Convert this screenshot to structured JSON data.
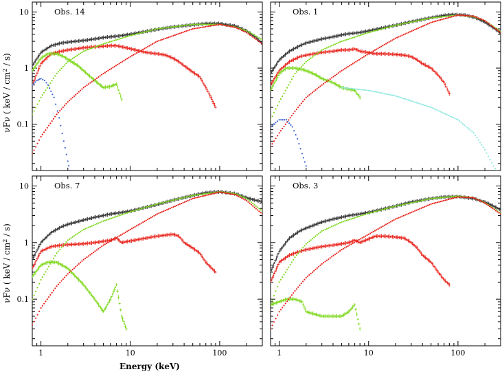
{
  "figure": {
    "xlabel": "Energy (keV)",
    "ylabel": "νFν ( keV / cm² / s)",
    "ylabel_main": "νFν ( keV / cm",
    "ylabel_sup": "2",
    "ylabel_tail": " / s)",
    "x_tick_labels": [
      "1",
      "10",
      "100"
    ],
    "y_tick_labels": [
      "0.1",
      "1",
      "10"
    ]
  },
  "colors": {
    "data_total": "#333333",
    "reflection": "#e8231c",
    "comptonization": "#7fd81e",
    "disk": "#3a63d6",
    "extra": "#8fe9df",
    "frame": "#000000"
  },
  "chart_data": [
    {
      "type": "line",
      "title": "Obs. 14",
      "xscale": "log",
      "yscale": "log",
      "xlim": [
        0.8,
        300
      ],
      "ylim": [
        0.015,
        15
      ],
      "series": [
        {
          "name": "total",
          "style": "data",
          "x": [
            0.8,
            1.0,
            1.3,
            1.7,
            2,
            3,
            4,
            5,
            6,
            7,
            8,
            10,
            20,
            30,
            50,
            70,
            100,
            150,
            200,
            250,
            300
          ],
          "y": [
            1.1,
            1.9,
            2.5,
            2.8,
            2.9,
            3.1,
            3.3,
            3.5,
            3.6,
            3.7,
            3.8,
            4.0,
            4.9,
            5.4,
            5.9,
            6.2,
            6.2,
            5.6,
            4.6,
            3.6,
            2.7
          ]
        },
        {
          "name": "reflection",
          "style": "data",
          "x": [
            0.8,
            1.0,
            1.3,
            1.7,
            2,
            3,
            4,
            5,
            6,
            7,
            8,
            15,
            20,
            25,
            30,
            35,
            40,
            50,
            60,
            70,
            80,
            90
          ],
          "y": [
            0.5,
            1.2,
            1.8,
            2.0,
            2.1,
            2.3,
            2.4,
            2.45,
            2.5,
            2.5,
            2.4,
            1.9,
            1.8,
            1.7,
            1.5,
            1.3,
            1.1,
            0.85,
            0.7,
            0.45,
            0.3,
            0.2
          ]
        },
        {
          "name": "comptonization",
          "style": "data",
          "x": [
            0.8,
            1.0,
            1.2,
            1.5,
            1.8,
            2.2,
            2.6,
            3,
            4,
            5,
            6,
            7,
            8
          ],
          "y": [
            0.9,
            1.5,
            1.8,
            1.8,
            1.6,
            1.3,
            1.1,
            0.9,
            0.6,
            0.45,
            0.47,
            0.52,
            0.28
          ]
        },
        {
          "name": "model_comptonization",
          "style": "model",
          "x": [
            0.8,
            1,
            1.5,
            2,
            3,
            5,
            10,
            20,
            50,
            100,
            150,
            200,
            300
          ],
          "y": [
            0.15,
            0.3,
            0.8,
            1.3,
            2.0,
            2.7,
            3.8,
            5.0,
            6.0,
            6.0,
            5.4,
            4.6,
            3.2
          ]
        },
        {
          "name": "model_reflection",
          "style": "model",
          "x": [
            0.8,
            1,
            1.5,
            2,
            3,
            5,
            10,
            20,
            50,
            100,
            150,
            200,
            300
          ],
          "y": [
            0.03,
            0.06,
            0.15,
            0.25,
            0.45,
            0.8,
            1.6,
            3.0,
            5.0,
            6.0,
            5.3,
            4.3,
            2.7
          ]
        },
        {
          "name": "model_disk",
          "style": "model",
          "x": [
            0.8,
            0.9,
            1.0,
            1.1,
            1.2,
            1.4,
            1.6,
            1.8,
            2.0,
            2.1
          ],
          "y": [
            0.5,
            0.6,
            0.65,
            0.6,
            0.5,
            0.3,
            0.13,
            0.05,
            0.022,
            0.015
          ]
        }
      ]
    },
    {
      "type": "line",
      "title": "Obs. 1",
      "xscale": "log",
      "yscale": "log",
      "xlim": [
        0.8,
        300
      ],
      "ylim": [
        0.015,
        15
      ],
      "series": [
        {
          "name": "total",
          "style": "data",
          "x": [
            0.8,
            1.0,
            1.3,
            1.7,
            2,
            3,
            4,
            5,
            6,
            7,
            8,
            10,
            20,
            30,
            50,
            70,
            90,
            120,
            160,
            200,
            260,
            300
          ],
          "y": [
            0.8,
            1.4,
            2.0,
            2.5,
            2.8,
            3.3,
            3.6,
            3.9,
            4.1,
            4.2,
            4.3,
            4.6,
            5.8,
            6.7,
            7.9,
            8.7,
            9.0,
            8.8,
            7.8,
            6.6,
            5.0,
            4.2
          ]
        },
        {
          "name": "reflection",
          "style": "data",
          "x": [
            0.8,
            1.0,
            1.3,
            1.7,
            2,
            3,
            4,
            5,
            6,
            7,
            8,
            12,
            15,
            20,
            25,
            30,
            35,
            40,
            50,
            60,
            70,
            80
          ],
          "y": [
            0.5,
            0.9,
            1.3,
            1.6,
            1.7,
            1.9,
            2.0,
            2.1,
            2.1,
            2.2,
            2.0,
            1.8,
            1.8,
            1.75,
            1.7,
            1.6,
            1.4,
            1.2,
            1.0,
            0.75,
            0.55,
            0.35
          ]
        },
        {
          "name": "comptonization",
          "style": "data",
          "x": [
            0.8,
            1.0,
            1.2,
            1.5,
            1.8,
            2.2,
            2.6,
            3,
            4,
            5,
            6,
            7,
            8
          ],
          "y": [
            0.4,
            0.8,
            1.0,
            1.0,
            0.95,
            0.85,
            0.75,
            0.65,
            0.55,
            0.45,
            0.42,
            0.4,
            0.3
          ]
        },
        {
          "name": "model_comptonization",
          "style": "model",
          "x": [
            0.8,
            1,
            1.5,
            2,
            3,
            5,
            10,
            20,
            50,
            100,
            150,
            200,
            300
          ],
          "y": [
            0.12,
            0.25,
            0.8,
            1.3,
            2.1,
            3.0,
            4.3,
            5.8,
            7.8,
            8.8,
            8.2,
            7.0,
            4.5
          ]
        },
        {
          "name": "model_reflection",
          "style": "model",
          "x": [
            0.8,
            1,
            1.5,
            2,
            3,
            5,
            10,
            20,
            50,
            100,
            150,
            200,
            300
          ],
          "y": [
            0.04,
            0.07,
            0.17,
            0.3,
            0.5,
            0.9,
            1.8,
            3.4,
            6.5,
            8.8,
            8.4,
            7.0,
            4.3
          ]
        },
        {
          "name": "model_disk",
          "style": "model",
          "x": [
            0.8,
            1.0,
            1.2,
            1.4,
            1.6,
            1.8,
            2.0,
            2.2
          ],
          "y": [
            0.09,
            0.12,
            0.12,
            0.09,
            0.055,
            0.03,
            0.018,
            0.012
          ]
        },
        {
          "name": "model_extra",
          "style": "model",
          "x": [
            5,
            10,
            20,
            50,
            100,
            150,
            200,
            250,
            300
          ],
          "y": [
            0.45,
            0.4,
            0.32,
            0.2,
            0.12,
            0.07,
            0.035,
            0.018,
            0.012
          ]
        }
      ]
    },
    {
      "type": "line",
      "title": "Obs. 7",
      "xscale": "log",
      "yscale": "log",
      "xlim": [
        0.8,
        300
      ],
      "ylim": [
        0.015,
        15
      ],
      "series": [
        {
          "name": "total",
          "style": "data",
          "x": [
            0.8,
            1.0,
            1.3,
            1.7,
            2,
            3,
            4,
            5,
            6,
            7,
            8,
            10,
            20,
            30,
            50,
            70,
            100,
            150,
            200,
            250,
            300
          ],
          "y": [
            0.5,
            1.0,
            1.5,
            1.9,
            2.1,
            2.5,
            2.8,
            3.0,
            3.2,
            3.3,
            3.4,
            3.6,
            4.7,
            5.6,
            6.8,
            7.6,
            7.9,
            7.3,
            6.2,
            5.6,
            5.3
          ]
        },
        {
          "name": "reflection",
          "style": "data",
          "x": [
            0.8,
            1.0,
            1.3,
            1.7,
            2,
            3,
            4,
            5,
            6,
            7,
            8,
            15,
            20,
            30,
            35,
            40,
            50,
            60,
            70,
            90
          ],
          "y": [
            0.35,
            0.7,
            0.85,
            0.9,
            0.92,
            0.95,
            1.0,
            1.05,
            1.1,
            1.2,
            1.0,
            1.2,
            1.3,
            1.4,
            1.3,
            1.0,
            0.8,
            0.65,
            0.45,
            0.3
          ]
        },
        {
          "name": "comptonization",
          "style": "data",
          "x": [
            0.8,
            1.0,
            1.2,
            1.5,
            2,
            3,
            4,
            5,
            6,
            7,
            8,
            9
          ],
          "y": [
            0.25,
            0.4,
            0.45,
            0.45,
            0.35,
            0.18,
            0.1,
            0.06,
            0.1,
            0.18,
            0.05,
            0.03
          ]
        },
        {
          "name": "model_comptonization",
          "style": "model",
          "x": [
            0.8,
            1,
            1.5,
            2,
            3,
            5,
            10,
            20,
            50,
            100,
            150,
            200,
            300
          ],
          "y": [
            0.1,
            0.22,
            0.65,
            1.1,
            1.7,
            2.4,
            3.5,
            4.8,
            6.8,
            7.9,
            7.3,
            6.0,
            3.6
          ]
        },
        {
          "name": "model_reflection",
          "style": "model",
          "x": [
            0.8,
            1,
            1.5,
            2,
            3,
            5,
            10,
            20,
            50,
            100,
            150,
            200,
            300
          ],
          "y": [
            0.035,
            0.07,
            0.17,
            0.28,
            0.5,
            0.9,
            1.7,
            3.2,
            6.0,
            7.8,
            7.0,
            5.5,
            3.2
          ]
        }
      ]
    },
    {
      "type": "line",
      "title": "Obs. 3",
      "xscale": "log",
      "yscale": "log",
      "xlim": [
        0.8,
        300
      ],
      "ylim": [
        0.015,
        15
      ],
      "series": [
        {
          "name": "total",
          "style": "data",
          "x": [
            0.8,
            1.0,
            1.3,
            1.7,
            2,
            3,
            4,
            5,
            6,
            7,
            8,
            10,
            20,
            30,
            50,
            70,
            100,
            150,
            200,
            250,
            300
          ],
          "y": [
            0.3,
            0.7,
            1.2,
            1.6,
            1.8,
            2.3,
            2.6,
            2.8,
            3.0,
            3.1,
            3.2,
            3.4,
            4.4,
            5.2,
            6.0,
            6.4,
            6.5,
            6.0,
            5.2,
            4.4,
            3.8
          ]
        },
        {
          "name": "reflection",
          "style": "data",
          "x": [
            0.8,
            1.0,
            1.3,
            1.7,
            2,
            3,
            4,
            5,
            6,
            7,
            8,
            12,
            15,
            20,
            25,
            30,
            35,
            40,
            50,
            60,
            70,
            80
          ],
          "y": [
            0.2,
            0.45,
            0.6,
            0.7,
            0.75,
            0.85,
            0.9,
            0.95,
            1.0,
            1.1,
            1.0,
            1.3,
            1.3,
            1.25,
            1.2,
            1.0,
            0.8,
            0.6,
            0.45,
            0.3,
            0.22,
            0.18
          ]
        },
        {
          "name": "comptonization",
          "style": "data",
          "x": [
            0.8,
            1.0,
            1.2,
            1.5,
            1.8,
            2,
            3,
            4,
            5,
            6,
            7,
            8
          ],
          "y": [
            0.08,
            0.09,
            0.1,
            0.1,
            0.09,
            0.06,
            0.05,
            0.05,
            0.05,
            0.06,
            0.08,
            0.03
          ]
        },
        {
          "name": "model_comptonization",
          "style": "model",
          "x": [
            0.8,
            1,
            1.5,
            2,
            3,
            5,
            10,
            20,
            50,
            100,
            150,
            200,
            300
          ],
          "y": [
            0.08,
            0.2,
            0.55,
            0.95,
            1.6,
            2.3,
            3.3,
            4.4,
            6.0,
            6.6,
            6.2,
            5.1,
            3.3
          ]
        },
        {
          "name": "model_reflection",
          "style": "model",
          "x": [
            0.8,
            1,
            1.5,
            2,
            3,
            5,
            10,
            20,
            50,
            100,
            150,
            200,
            300
          ],
          "y": [
            0.03,
            0.06,
            0.14,
            0.24,
            0.42,
            0.75,
            1.4,
            2.6,
            4.8,
            6.4,
            6.2,
            5.0,
            3.2
          ]
        }
      ]
    }
  ]
}
